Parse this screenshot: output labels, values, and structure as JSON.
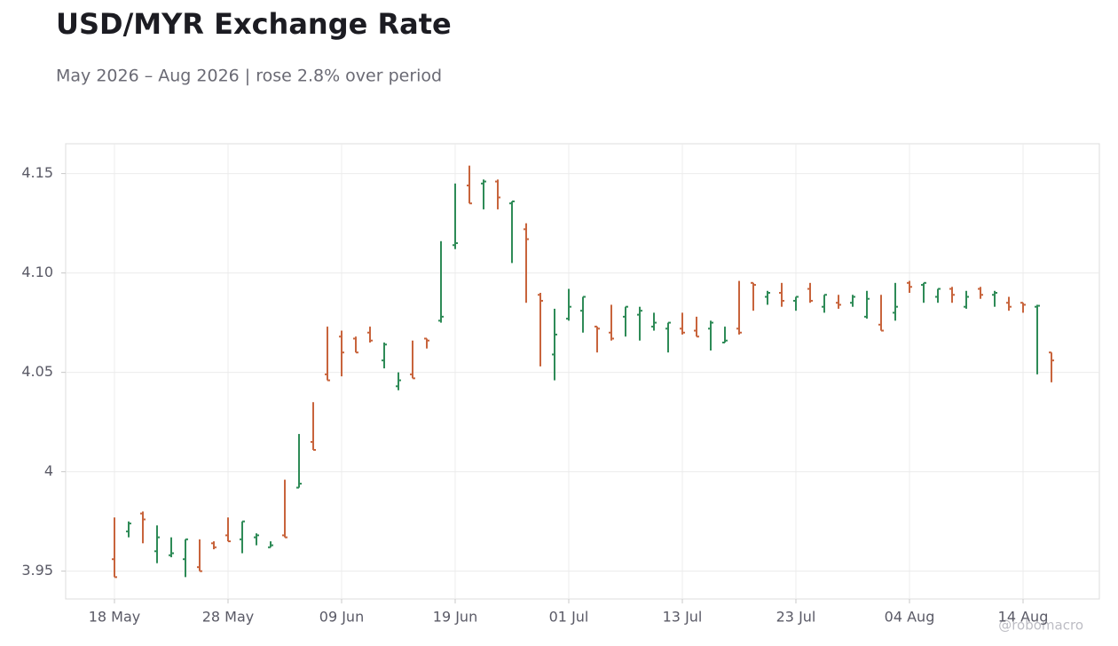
{
  "chart_data": {
    "type": "ohlc",
    "title": "USD/MYR Exchange Rate",
    "subtitle": "May 2026 – Aug 2026 | rose 2.8% over period",
    "watermark": "@robomacro",
    "categories": [
      "18 May",
      null,
      null,
      null,
      null,
      null,
      null,
      null,
      "28 May",
      null,
      null,
      null,
      null,
      null,
      null,
      null,
      "09 Jun",
      null,
      null,
      null,
      null,
      null,
      null,
      null,
      "19 Jun",
      null,
      null,
      null,
      null,
      null,
      null,
      null,
      "01 Jul",
      null,
      null,
      null,
      null,
      null,
      null,
      null,
      "13 Jul",
      null,
      null,
      null,
      null,
      null,
      null,
      null,
      "23 Jul",
      null,
      null,
      null,
      null,
      null,
      null,
      null,
      "04 Aug",
      null,
      null,
      null,
      null,
      null,
      null,
      null,
      "14 Aug",
      null,
      null
    ],
    "open": [
      3.956,
      3.97,
      3.979,
      3.96,
      3.958,
      3.956,
      3.952,
      3.964,
      3.968,
      3.966,
      3.967,
      3.962,
      3.968,
      3.992,
      4.015,
      4.049,
      4.068,
      4.067,
      4.07,
      4.056,
      4.043,
      4.049,
      4.067,
      4.076,
      4.114,
      4.144,
      4.145,
      4.146,
      4.135,
      4.122,
      4.089,
      4.059,
      4.077,
      4.081,
      4.073,
      4.07,
      4.078,
      4.079,
      4.073,
      4.072,
      4.072,
      4.071,
      4.072,
      4.065,
      4.072,
      4.095,
      4.088,
      4.09,
      4.086,
      4.092,
      4.083,
      4.085,
      4.085,
      4.078,
      4.074,
      4.08,
      4.095,
      4.094,
      4.088,
      4.092,
      4.083,
      4.092,
      4.089,
      4.085,
      4.085,
      4.083,
      4.06
    ],
    "high": [
      3.977,
      3.975,
      3.98,
      3.973,
      3.967,
      3.966,
      3.966,
      3.965,
      3.977,
      3.975,
      3.969,
      3.965,
      3.996,
      4.019,
      4.035,
      4.073,
      4.071,
      4.068,
      4.073,
      4.065,
      4.05,
      4.066,
      4.067,
      4.116,
      4.145,
      4.154,
      4.147,
      4.147,
      4.136,
      4.125,
      4.09,
      4.082,
      4.092,
      4.088,
      4.073,
      4.084,
      4.083,
      4.083,
      4.08,
      4.075,
      4.08,
      4.078,
      4.076,
      4.073,
      4.096,
      4.095,
      4.091,
      4.095,
      4.088,
      4.095,
      4.089,
      4.089,
      4.089,
      4.091,
      4.089,
      4.095,
      4.096,
      4.095,
      4.092,
      4.093,
      4.091,
      4.093,
      4.091,
      4.088,
      4.085,
      4.084,
      4.06
    ],
    "low": [
      3.947,
      3.967,
      3.964,
      3.954,
      3.957,
      3.947,
      3.95,
      3.961,
      3.965,
      3.959,
      3.963,
      3.962,
      3.967,
      3.992,
      4.011,
      4.046,
      4.048,
      4.06,
      4.065,
      4.052,
      4.041,
      4.047,
      4.062,
      4.075,
      4.112,
      4.135,
      4.132,
      4.132,
      4.105,
      4.085,
      4.053,
      4.046,
      4.076,
      4.07,
      4.06,
      4.066,
      4.068,
      4.066,
      4.071,
      4.06,
      4.069,
      4.068,
      4.061,
      4.065,
      4.069,
      4.081,
      4.084,
      4.083,
      4.081,
      4.085,
      4.08,
      4.082,
      4.083,
      4.077,
      4.071,
      4.076,
      4.09,
      4.085,
      4.085,
      4.085,
      4.082,
      4.087,
      4.083,
      4.081,
      4.08,
      4.049,
      4.045
    ],
    "close": [
      3.947,
      3.974,
      3.976,
      3.967,
      3.959,
      3.966,
      3.95,
      3.962,
      3.965,
      3.975,
      3.968,
      3.963,
      3.967,
      3.994,
      4.011,
      4.046,
      4.06,
      4.06,
      4.066,
      4.064,
      4.046,
      4.047,
      4.066,
      4.078,
      4.115,
      4.135,
      4.146,
      4.138,
      4.136,
      4.117,
      4.086,
      4.069,
      4.083,
      4.088,
      4.072,
      4.067,
      4.083,
      4.081,
      4.075,
      4.075,
      4.07,
      4.068,
      4.075,
      4.066,
      4.07,
      4.094,
      4.09,
      4.086,
      4.088,
      4.086,
      4.089,
      4.084,
      4.088,
      4.087,
      4.071,
      4.083,
      4.093,
      4.095,
      4.092,
      4.089,
      4.088,
      4.089,
      4.09,
      4.083,
      4.084,
      4.0835,
      4.056
    ],
    "up_color": "#2e8b57",
    "down_color": "#c8643c",
    "ylim": [
      3.936,
      4.165
    ],
    "yticks": [
      3.95,
      4,
      4.05,
      {
        "value": 4.1,
        "label": "4.10"
      },
      4.15
    ],
    "grid": true
  }
}
